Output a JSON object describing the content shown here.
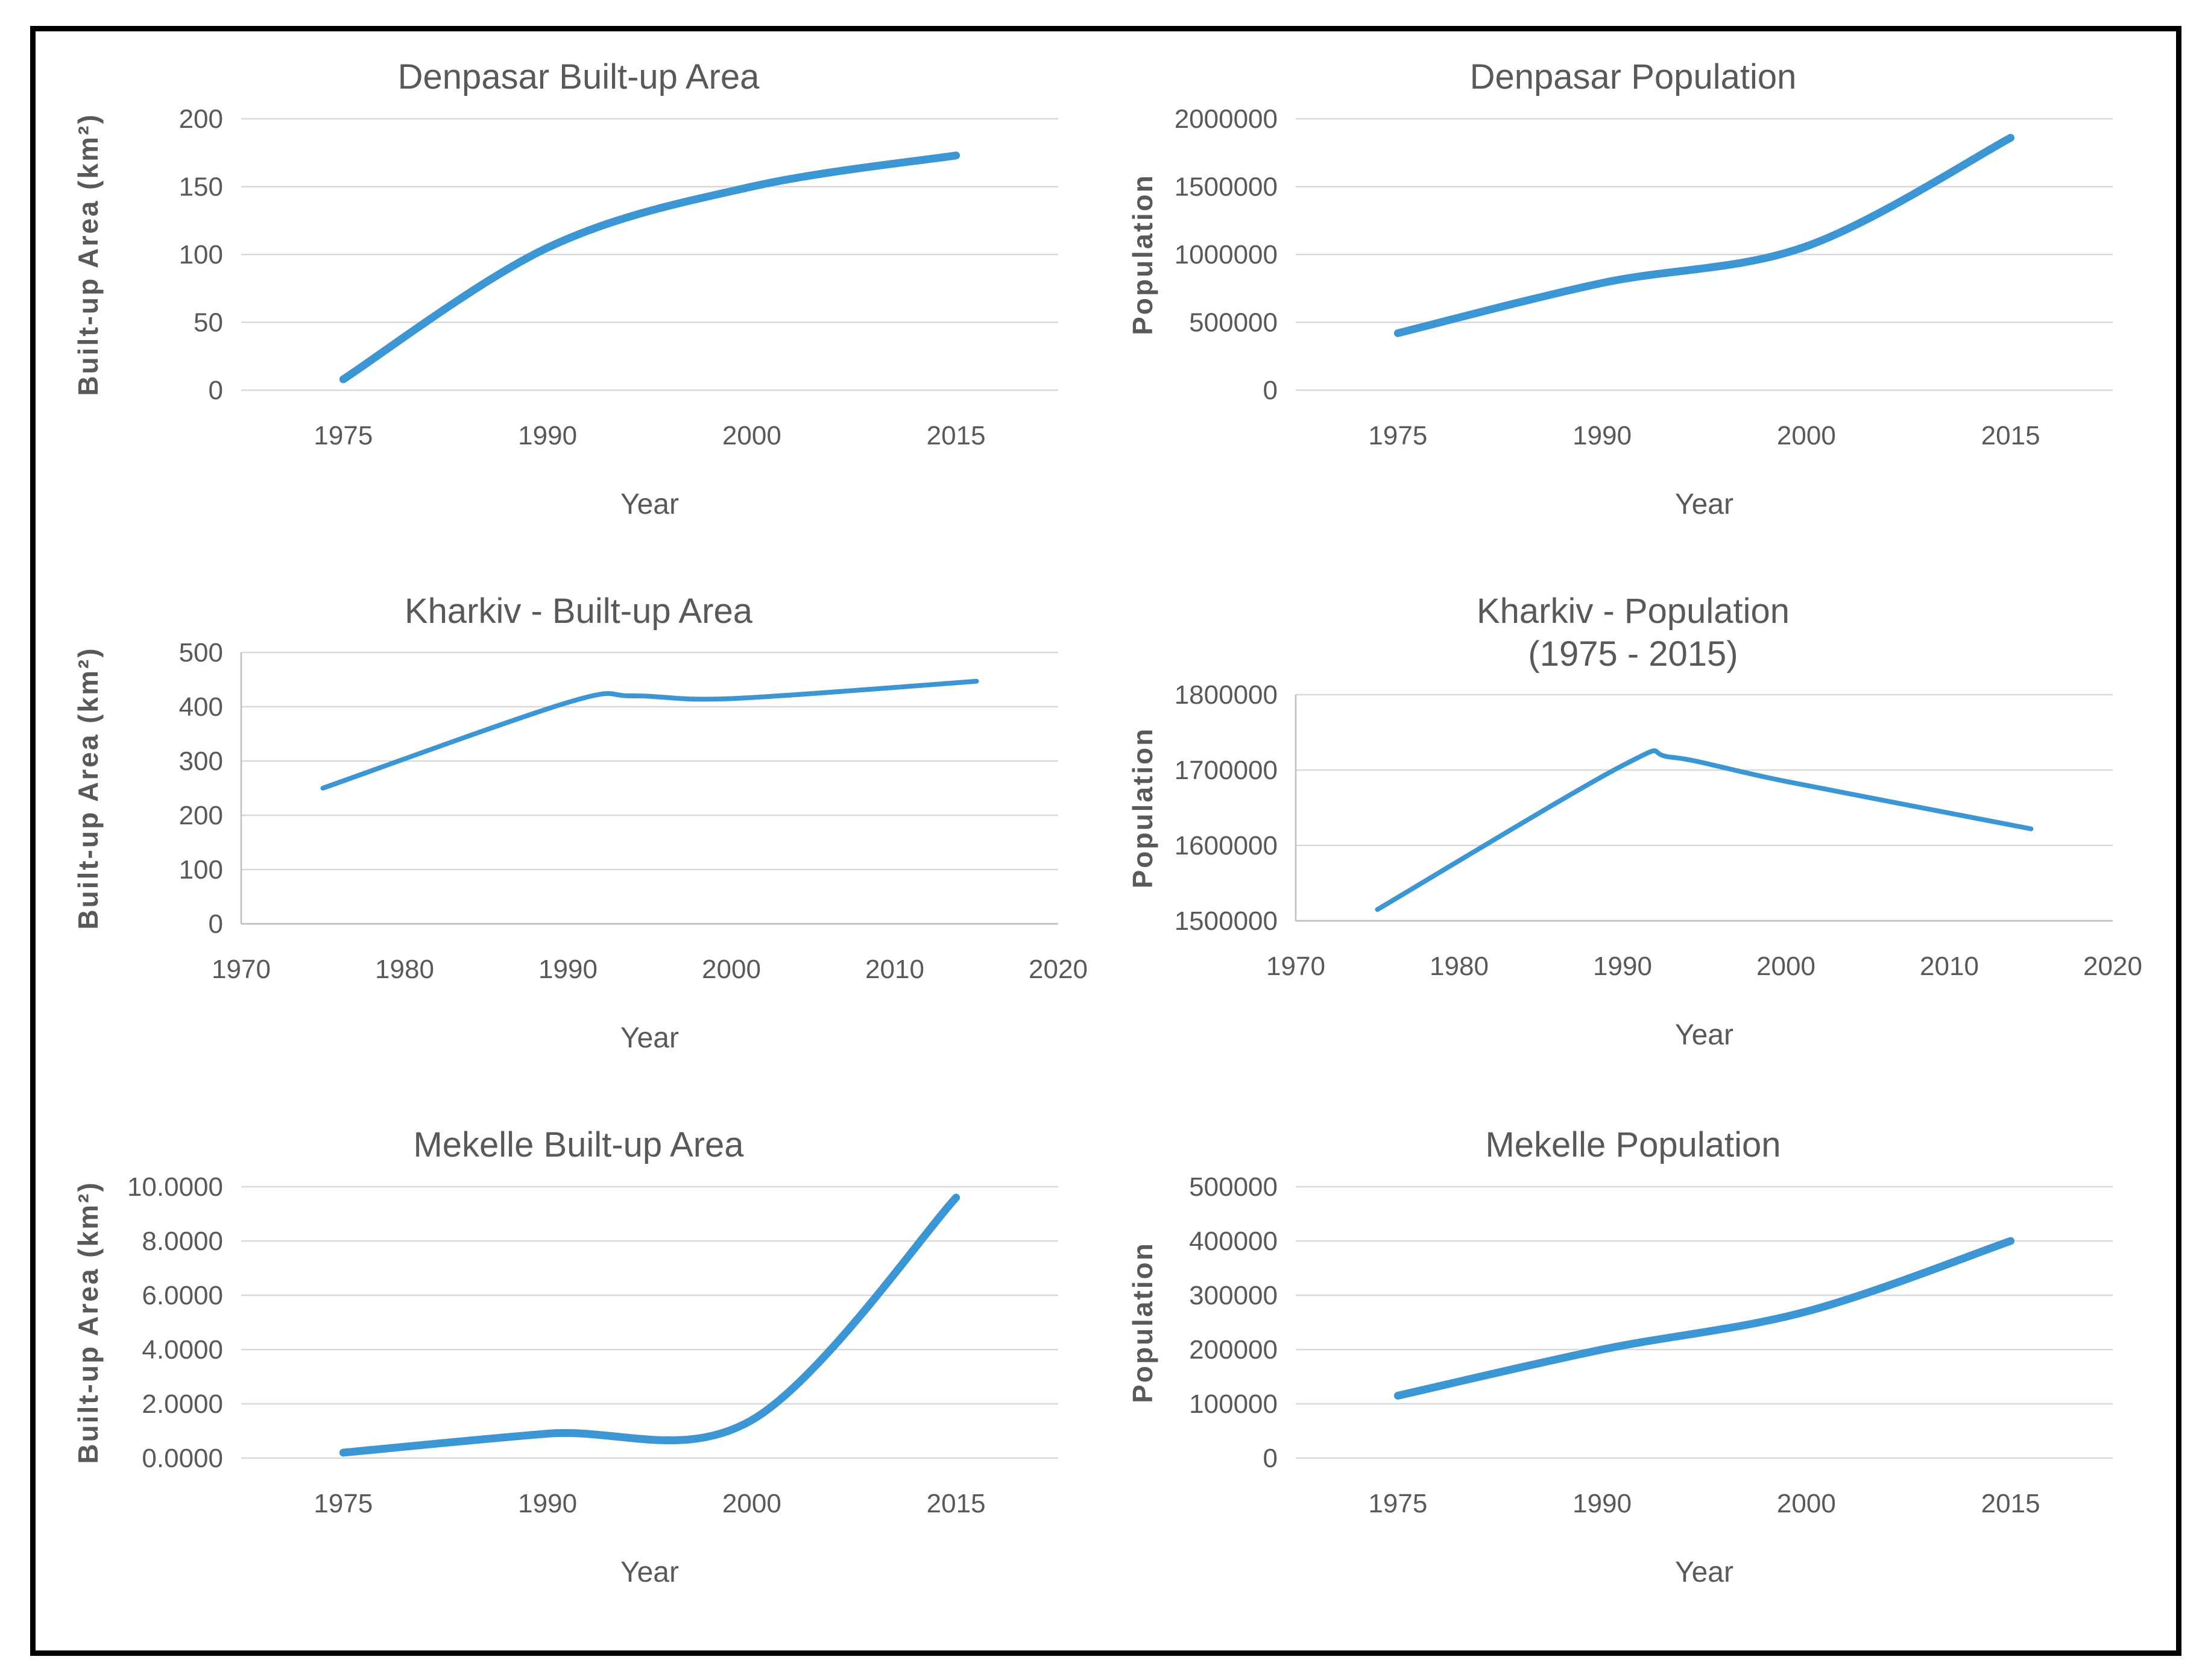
{
  "page": {
    "background": "#ffffff",
    "border_color": "#000000"
  },
  "colors": {
    "line": "#3D96D4",
    "grid": "#D9D9D9",
    "axis": "#BFBFBF",
    "text": "#595959"
  },
  "chart_data": [
    {
      "type": "line",
      "title": "Denpasar Built-up Area",
      "xlabel": "Year",
      "ylabel": "Built-up Area (km²)",
      "x_mode": "category",
      "categories": [
        "1975",
        "1990",
        "2000",
        "2015"
      ],
      "values": [
        8,
        105,
        150,
        173
      ],
      "ylim": [
        0,
        200
      ],
      "yticks": [
        0,
        50,
        100,
        150,
        200
      ],
      "ytick_labels": [
        "0",
        "50",
        "100",
        "150",
        "200"
      ],
      "grid": true,
      "axis_lines": false,
      "line_width": 13
    },
    {
      "type": "line",
      "title": "Denpasar Population",
      "xlabel": "Year",
      "ylabel": "Population",
      "x_mode": "category",
      "categories": [
        "1975",
        "1990",
        "2000",
        "2015"
      ],
      "values": [
        420000,
        790000,
        1060000,
        1860000
      ],
      "ylim": [
        0,
        2000000
      ],
      "yticks": [
        0,
        500000,
        1000000,
        1500000,
        2000000
      ],
      "ytick_labels": [
        "0",
        "500000",
        "1000000",
        "1500000",
        "2000000"
      ],
      "grid": true,
      "axis_lines": false,
      "line_width": 13
    },
    {
      "type": "line",
      "title": "Kharkiv - Built-up Area",
      "xlabel": "Year",
      "ylabel": "Built-up Area (km²)",
      "x_mode": "numeric",
      "x": [
        1975,
        1990,
        1994,
        2000,
        2015
      ],
      "values": [
        250,
        408,
        420,
        415,
        447
      ],
      "xlim": [
        1970,
        2020
      ],
      "xticks": [
        1970,
        1980,
        1990,
        2000,
        2010,
        2020
      ],
      "ylim": [
        0,
        500
      ],
      "yticks": [
        0,
        100,
        200,
        300,
        400,
        500
      ],
      "ytick_labels": [
        "0",
        "100",
        "200",
        "300",
        "400",
        "500"
      ],
      "grid": true,
      "axis_lines": true,
      "line_width": 8
    },
    {
      "type": "line",
      "title": "Kharkiv - Population",
      "subtitle": "(1975 - 2015)",
      "xlabel": "Year",
      "ylabel": "Population",
      "x_mode": "numeric",
      "x": [
        1975,
        1990,
        1993,
        2000,
        2015
      ],
      "values": [
        1515000,
        1706000,
        1717000,
        1685000,
        1622000
      ],
      "xlim": [
        1970,
        2020
      ],
      "xticks": [
        1970,
        1980,
        1990,
        2000,
        2010,
        2020
      ],
      "ylim": [
        1500000,
        1800000
      ],
      "yticks": [
        1500000,
        1600000,
        1700000,
        1800000
      ],
      "ytick_labels": [
        "1500000",
        "1600000",
        "1700000",
        "1800000"
      ],
      "grid": true,
      "axis_lines": true,
      "line_width": 8
    },
    {
      "type": "line",
      "title": "Mekelle Built-up Area",
      "xlabel": "Year",
      "ylabel": "Built-up Area (km²)",
      "x_mode": "category",
      "categories": [
        "1975",
        "1990",
        "2000",
        "2015"
      ],
      "values": [
        0.2,
        0.9,
        1.4,
        9.6
      ],
      "ylim": [
        0,
        10
      ],
      "yticks": [
        0,
        2,
        4,
        6,
        8,
        10
      ],
      "ytick_labels": [
        "0.0000",
        "2.0000",
        "4.0000",
        "6.0000",
        "8.0000",
        "10.0000"
      ],
      "grid": true,
      "axis_lines": false,
      "line_width": 13
    },
    {
      "type": "line",
      "title": "Mekelle Population",
      "xlabel": "Year",
      "ylabel": "Population",
      "x_mode": "category",
      "categories": [
        "1975",
        "1990",
        "2000",
        "2015"
      ],
      "values": [
        115000,
        200000,
        270000,
        400000
      ],
      "ylim": [
        0,
        500000
      ],
      "yticks": [
        0,
        100000,
        200000,
        300000,
        400000,
        500000
      ],
      "ytick_labels": [
        "0",
        "100000",
        "200000",
        "300000",
        "400000",
        "500000"
      ],
      "grid": true,
      "axis_lines": false,
      "line_width": 13
    }
  ]
}
